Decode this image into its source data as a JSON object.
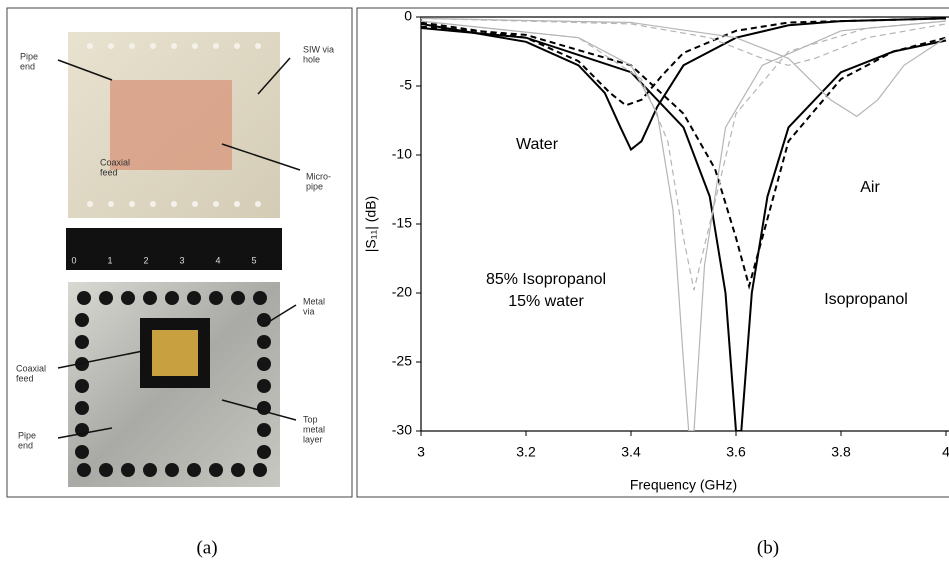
{
  "chart_data": {
    "type": "line",
    "xlabel": "Frequency (GHz)",
    "ylabel": "|S₁₁| (dB)",
    "xlim": [
      3,
      4
    ],
    "xticks": [
      3,
      3.2,
      3.4,
      3.6,
      3.8,
      4
    ],
    "ylim": [
      -30,
      0
    ],
    "yticks": [
      0,
      -5,
      -10,
      -15,
      -20,
      -25,
      -30
    ],
    "grid": false,
    "series": [
      {
        "color": "#000000",
        "dashed": false,
        "x": [
          3.0,
          3.2,
          3.3,
          3.35,
          3.38,
          3.4,
          3.42,
          3.45,
          3.5,
          3.6,
          3.7,
          3.8,
          4.0
        ],
        "values": [
          -0.5,
          -1.8,
          -3.5,
          -5.5,
          -8,
          -9.6,
          -9,
          -6.5,
          -3.5,
          -1.5,
          -0.6,
          -0.3,
          -0.1
        ]
      },
      {
        "color": "#000000",
        "dashed": false,
        "x": [
          3.0,
          3.2,
          3.4,
          3.5,
          3.55,
          3.58,
          3.6,
          3.61,
          3.63,
          3.66,
          3.7,
          3.8,
          3.9,
          4.0
        ],
        "values": [
          -0.8,
          -1.5,
          -4,
          -8,
          -13,
          -20,
          -30,
          -30,
          -20,
          -13,
          -8,
          -4,
          -2.5,
          -1.7
        ]
      },
      {
        "color": "#000000",
        "dashed": true,
        "x": [
          3.0,
          3.2,
          3.3,
          3.36,
          3.39,
          3.42,
          3.46,
          3.5,
          3.6,
          3.7,
          4.0
        ],
        "values": [
          -0.4,
          -1.5,
          -3.2,
          -5.5,
          -6.4,
          -6,
          -4.2,
          -2.6,
          -1,
          -0.4,
          -0.1
        ]
      },
      {
        "color": "#000000",
        "dashed": true,
        "x": [
          3.0,
          3.2,
          3.4,
          3.5,
          3.56,
          3.6,
          3.625,
          3.65,
          3.7,
          3.8,
          3.9,
          4.0
        ],
        "values": [
          -0.7,
          -1.3,
          -3.5,
          -7,
          -11,
          -16,
          -19.5,
          -16,
          -9,
          -4.5,
          -2.5,
          -1.5
        ]
      },
      {
        "color": "#b5b5b5",
        "dashed": false,
        "x": [
          3.0,
          3.3,
          3.4,
          3.45,
          3.48,
          3.5,
          3.51,
          3.52,
          3.54,
          3.58,
          3.65,
          3.8,
          4.0
        ],
        "values": [
          -0.3,
          -1.5,
          -3.5,
          -7,
          -14,
          -25,
          -30,
          -30,
          -18,
          -8,
          -3.5,
          -1,
          -0.3
        ]
      },
      {
        "color": "#b5b5b5",
        "dashed": true,
        "x": [
          3.0,
          3.3,
          3.42,
          3.47,
          3.5,
          3.52,
          3.55,
          3.6,
          3.7,
          3.85,
          4.0
        ],
        "values": [
          -0.3,
          -1.5,
          -4.5,
          -9,
          -16,
          -19.8,
          -15,
          -7,
          -2.5,
          -0.8,
          -0.3
        ]
      },
      {
        "color": "#b5b5b5",
        "dashed": false,
        "x": [
          3.0,
          3.4,
          3.6,
          3.7,
          3.78,
          3.83,
          3.87,
          3.92,
          4.0
        ],
        "values": [
          -0.1,
          -0.4,
          -1.5,
          -3,
          -6,
          -7.2,
          -6,
          -3.5,
          -1.5
        ]
      },
      {
        "color": "#b5b5b5",
        "dashed": true,
        "x": [
          3.0,
          3.4,
          3.55,
          3.65,
          3.7,
          3.75,
          3.85,
          4.0
        ],
        "values": [
          -0.1,
          -0.5,
          -1.5,
          -3,
          -3.5,
          -3,
          -1.5,
          -0.5
        ]
      }
    ],
    "annotations": [
      [
        "Water"
      ],
      [
        "Air"
      ],
      [
        "85% Isopropanol",
        "15% water"
      ],
      [
        "Isopropanol"
      ]
    ]
  },
  "photo": {
    "top_labels": [
      [
        "Pipe",
        "end"
      ],
      [
        "SIW via",
        "hole"
      ],
      [
        "Coaxial",
        "feed"
      ],
      [
        "Micro-",
        "pipe"
      ]
    ],
    "ruler": [
      "0",
      "1",
      "2",
      "3",
      "4",
      "5"
    ],
    "bottom_labels": [
      [
        "Metal",
        "via"
      ],
      [
        "Coaxial",
        "feed"
      ],
      [
        "Top",
        "metal",
        "layer"
      ],
      [
        "Pipe",
        "end"
      ]
    ]
  },
  "captions": [
    "(a)",
    "(b)"
  ]
}
